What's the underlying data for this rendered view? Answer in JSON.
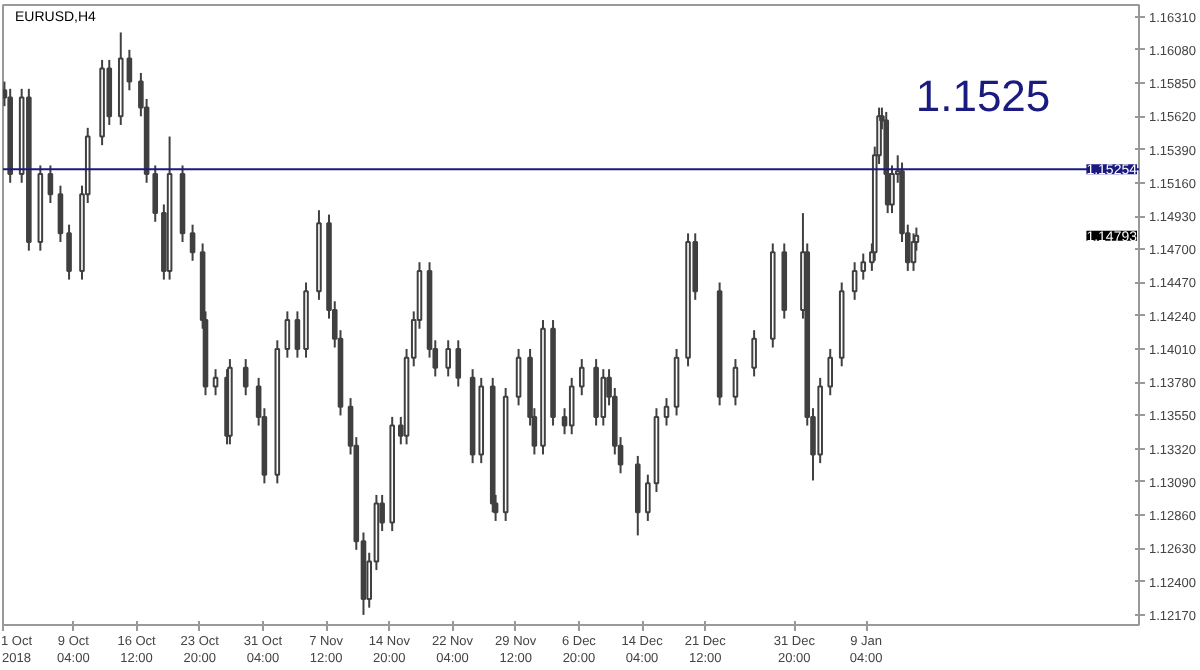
{
  "chart_data": {
    "type": "candlestick",
    "title": "EURUSD,H4",
    "color": "#404040",
    "x": [
      "2018-10-01T04:00",
      "2018-10-01T20:00",
      "2018-10-03T04:00",
      "2018-10-04T00:00",
      "2018-10-05T08:00",
      "2018-10-06T12:00",
      "2018-10-07T16:00",
      "2018-10-08T16:00",
      "2018-10-10T04:00",
      "2018-10-10T20:00",
      "2018-10-12T12:00",
      "2018-10-13T08:00",
      "2018-10-14T16:00",
      "2018-10-15T16:00",
      "2018-10-17T00:00",
      "2018-10-17T16:00",
      "2018-10-18T16:00",
      "2018-10-19T16:00",
      "2018-10-20T08:00",
      "2018-10-21T20:00",
      "2018-10-23T00:00",
      "2018-10-24T04:00",
      "2018-10-24T12:00",
      "2018-10-25T16:00",
      "2018-10-27T00:00",
      "2018-10-27T08:00",
      "2018-10-29T04:00",
      "2018-10-30T16:00",
      "2018-10-31T08:00",
      "2018-11-01T20:00",
      "2018-11-03T00:00",
      "2018-11-04T04:00",
      "2018-11-05T04:00",
      "2018-11-06T16:00",
      "2018-11-07T20:00",
      "2018-11-08T12:00",
      "2018-11-09T04:00",
      "2018-11-10T08:00",
      "2018-11-11T00:00",
      "2018-11-11T20:00",
      "2018-11-12T12:00",
      "2018-11-13T08:00",
      "2018-11-14T00:00",
      "2018-11-15T04:00",
      "2018-11-16T04:00",
      "2018-11-16T20:00",
      "2018-11-17T16:00",
      "2018-11-18T08:00",
      "2018-11-19T12:00",
      "2018-11-20T04:00",
      "2018-11-21T16:00",
      "2018-11-22T20:00",
      "2018-11-24T12:00",
      "2018-11-25T12:00",
      "2018-11-26T20:00",
      "2018-11-27T04:00",
      "2018-11-28T08:00",
      "2018-11-29T20:00",
      "2018-12-01T04:00",
      "2018-12-01T16:00",
      "2018-12-02T16:00",
      "2018-12-03T20:00",
      "2018-12-05T04:00",
      "2018-12-06T00:00",
      "2018-12-07T04:00",
      "2018-12-08T20:00",
      "2018-12-09T16:00",
      "2018-12-10T08:00",
      "2018-12-11T00:00",
      "2018-12-11T16:00",
      "2018-12-13T16:00",
      "2018-12-14T20:00",
      "2018-12-15T20:00",
      "2018-12-17T00:00",
      "2018-12-18T04:00",
      "2018-12-19T12:00",
      "2018-12-20T08:00",
      "2018-12-23T04:00",
      "2018-12-25T00:00",
      "2018-12-27T04:00",
      "2018-12-29T08:00",
      "2018-12-30T16:00",
      "2019-01-01T20:00",
      "2019-01-02T08:00",
      "2019-01-03T00:00",
      "2019-01-03T20:00",
      "2019-01-05T00:00",
      "2019-01-06T08:00",
      "2019-01-07T20:00",
      "2019-01-08T20:00",
      "2019-01-09T20:00",
      "2019-01-10T04:00",
      "2019-01-10T16:00",
      "2019-01-11T00:00",
      "2019-01-11T12:00",
      "2019-01-11T16:00",
      "2019-01-12T04:00",
      "2019-01-12T20:00",
      "2019-01-13T08:00",
      "2019-01-14T00:00",
      "2019-01-14T16:00",
      "2019-01-15T00:00"
    ],
    "ohlc": [
      [
        1.158,
        1.1586,
        1.1569,
        1.1575
      ],
      [
        1.1575,
        1.1581,
        1.1516,
        1.1522
      ],
      [
        1.1522,
        1.1581,
        1.1516,
        1.1575
      ],
      [
        1.1575,
        1.1581,
        1.1469,
        1.1475
      ],
      [
        1.1475,
        1.1528,
        1.1469,
        1.1522
      ],
      [
        1.1522,
        1.1528,
        1.1502,
        1.1508
      ],
      [
        1.1508,
        1.1514,
        1.1475,
        1.1481
      ],
      [
        1.1481,
        1.1487,
        1.1449,
        1.1455
      ],
      [
        1.1455,
        1.1514,
        1.1449,
        1.1508
      ],
      [
        1.1508,
        1.1554,
        1.1502,
        1.1548
      ],
      [
        1.1548,
        1.1601,
        1.1542,
        1.1595
      ],
      [
        1.1595,
        1.1601,
        1.1556,
        1.1562
      ],
      [
        1.1562,
        1.162,
        1.1556,
        1.1602
      ],
      [
        1.1602,
        1.1608,
        1.158,
        1.1586
      ],
      [
        1.1586,
        1.1592,
        1.1562,
        1.1568
      ],
      [
        1.1568,
        1.1574,
        1.1516,
        1.1522
      ],
      [
        1.1522,
        1.1528,
        1.1489,
        1.1495
      ],
      [
        1.1495,
        1.1501,
        1.1449,
        1.1455
      ],
      [
        1.1455,
        1.1548,
        1.1449,
        1.1522
      ],
      [
        1.1522,
        1.1528,
        1.1475,
        1.1481
      ],
      [
        1.1481,
        1.1487,
        1.1462,
        1.1468
      ],
      [
        1.1468,
        1.1474,
        1.1415,
        1.1421
      ],
      [
        1.1421,
        1.1427,
        1.1369,
        1.1375
      ],
      [
        1.1375,
        1.1387,
        1.1369,
        1.1381
      ],
      [
        1.1381,
        1.1387,
        1.1335,
        1.1341
      ],
      [
        1.1341,
        1.1394,
        1.1335,
        1.1388
      ],
      [
        1.1388,
        1.1394,
        1.1369,
        1.1375
      ],
      [
        1.1375,
        1.1381,
        1.1348,
        1.1354
      ],
      [
        1.1354,
        1.136,
        1.1308,
        1.1314
      ],
      [
        1.1314,
        1.1407,
        1.1308,
        1.1401
      ],
      [
        1.1401,
        1.1427,
        1.1395,
        1.1421
      ],
      [
        1.1421,
        1.1427,
        1.1395,
        1.1401
      ],
      [
        1.1401,
        1.1447,
        1.1395,
        1.1441
      ],
      [
        1.1441,
        1.1497,
        1.1435,
        1.1488
      ],
      [
        1.1488,
        1.1494,
        1.1422,
        1.1428
      ],
      [
        1.1428,
        1.1434,
        1.1402,
        1.1408
      ],
      [
        1.1408,
        1.1414,
        1.1355,
        1.1361
      ],
      [
        1.1361,
        1.1367,
        1.1328,
        1.1334
      ],
      [
        1.1334,
        1.134,
        1.1262,
        1.1268
      ],
      [
        1.1268,
        1.1274,
        1.1217,
        1.1228
      ],
      [
        1.1228,
        1.126,
        1.1222,
        1.1254
      ],
      [
        1.1254,
        1.13,
        1.1248,
        1.1294
      ],
      [
        1.1294,
        1.13,
        1.1275,
        1.1281
      ],
      [
        1.1281,
        1.1354,
        1.1275,
        1.1348
      ],
      [
        1.1348,
        1.1354,
        1.1335,
        1.1341
      ],
      [
        1.1341,
        1.1401,
        1.1335,
        1.1395
      ],
      [
        1.1395,
        1.1427,
        1.1389,
        1.1421
      ],
      [
        1.1421,
        1.1461,
        1.1415,
        1.1455
      ],
      [
        1.1455,
        1.1461,
        1.1395,
        1.1401
      ],
      [
        1.1401,
        1.1407,
        1.1382,
        1.1388
      ],
      [
        1.1388,
        1.1407,
        1.1382,
        1.1401
      ],
      [
        1.1401,
        1.1407,
        1.1375,
        1.1381
      ],
      [
        1.1381,
        1.1387,
        1.1322,
        1.1328
      ],
      [
        1.1328,
        1.1381,
        1.1322,
        1.1375
      ],
      [
        1.1375,
        1.1381,
        1.1288,
        1.1294
      ],
      [
        1.1294,
        1.13,
        1.1282,
        1.1288
      ],
      [
        1.1288,
        1.1374,
        1.1282,
        1.1368
      ],
      [
        1.1368,
        1.1401,
        1.1362,
        1.1395
      ],
      [
        1.1395,
        1.1401,
        1.1348,
        1.1354
      ],
      [
        1.1354,
        1.136,
        1.1328,
        1.1334
      ],
      [
        1.1334,
        1.1421,
        1.1328,
        1.1415
      ],
      [
        1.1415,
        1.1421,
        1.1348,
        1.1354
      ],
      [
        1.1354,
        1.136,
        1.1342,
        1.1348
      ],
      [
        1.1348,
        1.1381,
        1.1342,
        1.1375
      ],
      [
        1.1375,
        1.1394,
        1.1369,
        1.1388
      ],
      [
        1.1388,
        1.1394,
        1.1348,
        1.1354
      ],
      [
        1.1354,
        1.1387,
        1.1348,
        1.1381
      ],
      [
        1.1381,
        1.1387,
        1.1362,
        1.1368
      ],
      [
        1.1368,
        1.1374,
        1.1328,
        1.1334
      ],
      [
        1.1334,
        1.134,
        1.1315,
        1.1321
      ],
      [
        1.1321,
        1.1327,
        1.1272,
        1.1288
      ],
      [
        1.1288,
        1.1314,
        1.1282,
        1.1308
      ],
      [
        1.1308,
        1.136,
        1.1302,
        1.1354
      ],
      [
        1.1354,
        1.1367,
        1.1348,
        1.1361
      ],
      [
        1.1361,
        1.1401,
        1.1355,
        1.1395
      ],
      [
        1.1395,
        1.1481,
        1.1389,
        1.1475
      ],
      [
        1.1475,
        1.1481,
        1.1435,
        1.1441
      ],
      [
        1.1441,
        1.1447,
        1.1362,
        1.1368
      ],
      [
        1.1368,
        1.1394,
        1.1362,
        1.1388
      ],
      [
        1.1388,
        1.1414,
        1.1382,
        1.1408
      ],
      [
        1.1408,
        1.1474,
        1.1402,
        1.1468
      ],
      [
        1.1468,
        1.1474,
        1.1422,
        1.1428
      ],
      [
        1.1428,
        1.1495,
        1.1422,
        1.1468
      ],
      [
        1.1468,
        1.1474,
        1.1348,
        1.1354
      ],
      [
        1.1354,
        1.136,
        1.131,
        1.1328
      ],
      [
        1.1328,
        1.1381,
        1.1322,
        1.1375
      ],
      [
        1.1375,
        1.1401,
        1.1369,
        1.1395
      ],
      [
        1.1395,
        1.1447,
        1.1389,
        1.1441
      ],
      [
        1.1441,
        1.1461,
        1.1435,
        1.1455
      ],
      [
        1.1455,
        1.1467,
        1.1449,
        1.1461
      ],
      [
        1.1461,
        1.1474,
        1.1455,
        1.1468
      ],
      [
        1.1468,
        1.1541,
        1.1462,
        1.1535
      ],
      [
        1.1535,
        1.1568,
        1.1529,
        1.1562
      ],
      [
        1.1562,
        1.1568,
        1.1553,
        1.1559
      ],
      [
        1.1559,
        1.1565,
        1.1516,
        1.1522
      ],
      [
        1.1522,
        1.1528,
        1.1495,
        1.1501
      ],
      [
        1.1501,
        1.1528,
        1.1495,
        1.1522
      ],
      [
        1.1522,
        1.1535,
        1.1516,
        1.1524
      ],
      [
        1.1524,
        1.153,
        1.1475,
        1.1481
      ],
      [
        1.1481,
        1.1487,
        1.1455,
        1.1461
      ],
      [
        1.1461,
        1.1481,
        1.1455,
        1.1475
      ],
      [
        1.1475,
        1.1485,
        1.1469,
        1.14793
      ]
    ],
    "xlim": [
      "2018-10-01T00:00",
      "2019-02-09T20:00"
    ],
    "xticks": [
      {
        "value": "2018-10-01T00:00",
        "label": "1 Oct 2018"
      },
      {
        "value": "2018-10-09T04:00",
        "label": "9 Oct 04:00"
      },
      {
        "value": "2018-10-16T12:00",
        "label": "16 Oct 12:00"
      },
      {
        "value": "2018-10-23T20:00",
        "label": "23 Oct 20:00"
      },
      {
        "value": "2018-10-31T04:00",
        "label": "31 Oct 04:00"
      },
      {
        "value": "2018-11-07T12:00",
        "label": "7 Nov 12:00"
      },
      {
        "value": "2018-11-14T20:00",
        "label": "14 Nov 20:00"
      },
      {
        "value": "2018-11-22T04:00",
        "label": "22 Nov 04:00"
      },
      {
        "value": "2018-11-29T12:00",
        "label": "29 Nov 12:00"
      },
      {
        "value": "2018-12-06T20:00",
        "label": "6 Dec 20:00"
      },
      {
        "value": "2018-12-14T04:00",
        "label": "14 Dec 04:00"
      },
      {
        "value": "2018-12-21T12:00",
        "label": "21 Dec 12:00"
      },
      {
        "value": "2018-12-31T20:00",
        "label": "31 Dec 20:00"
      },
      {
        "value": "2019-01-09T04:00",
        "label": "9 Jan 04:00"
      }
    ],
    "ylim": [
      1.121,
      1.1639
    ],
    "yticks": [
      {
        "value": 1.1217,
        "label": "1.12170"
      },
      {
        "value": 1.124,
        "label": "1.12400"
      },
      {
        "value": 1.1263,
        "label": "1.12630"
      },
      {
        "value": 1.1286,
        "label": "1.12860"
      },
      {
        "value": 1.1309,
        "label": "1.13090"
      },
      {
        "value": 1.1332,
        "label": "1.13320"
      },
      {
        "value": 1.1355,
        "label": "1.13550"
      },
      {
        "value": 1.1378,
        "label": "1.13780"
      },
      {
        "value": 1.1401,
        "label": "1.14010"
      },
      {
        "value": 1.1424,
        "label": "1.14240"
      },
      {
        "value": 1.1447,
        "label": "1.14470"
      },
      {
        "value": 1.147,
        "label": "1.14700"
      },
      {
        "value": 1.1493,
        "label": "1.14930"
      },
      {
        "value": 1.1516,
        "label": "1.15160"
      },
      {
        "value": 1.1539,
        "label": "1.15390"
      },
      {
        "value": 1.1562,
        "label": "1.15620"
      },
      {
        "value": 1.1585,
        "label": "1.15850"
      },
      {
        "value": 1.1608,
        "label": "1.16080"
      },
      {
        "value": 1.1631,
        "label": "1.16310"
      }
    ],
    "ref_lines": [
      {
        "axis": "y",
        "value": 1.15254,
        "label": "1.15254",
        "color": "#1a1a80"
      }
    ],
    "annotations": [
      "1.1525",
      "1.14793"
    ]
  }
}
